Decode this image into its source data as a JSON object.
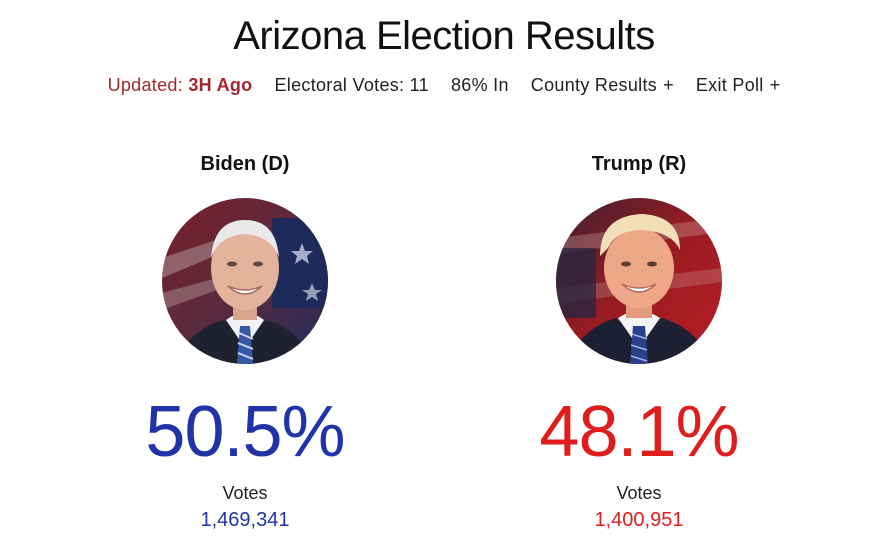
{
  "page": {
    "title": "Arizona Election Results"
  },
  "subnav": {
    "updated_label": "Updated:",
    "updated_value": "3H Ago",
    "electoral_votes": "Electoral Votes: 11",
    "percent_in": "86% In",
    "county_results": "County Results",
    "exit_poll": "Exit Poll",
    "expand_symbol": "+"
  },
  "candidates": [
    {
      "name": "Biden (D)",
      "percent": "50.5%",
      "votes_label": "Votes",
      "votes": "1,469,341",
      "color": "#2033a8",
      "portrait_icon": "biden-portrait"
    },
    {
      "name": "Trump (R)",
      "percent": "48.1%",
      "votes_label": "Votes",
      "votes": "1,400,951",
      "color": "#e01d1d",
      "portrait_icon": "trump-portrait"
    }
  ],
  "colors": {
    "updated": "#a3282e",
    "democrat": "#2033a8",
    "republican": "#e01d1d"
  }
}
